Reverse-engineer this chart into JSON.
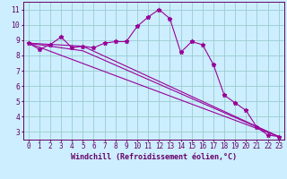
{
  "xlabel": "Windchill (Refroidissement éolien,°C)",
  "bg_color": "#cceeff",
  "line_color": "#990099",
  "grid_color": "#99cccc",
  "xlim": [
    -0.5,
    23.5
  ],
  "ylim": [
    2.5,
    11.5
  ],
  "xticks": [
    0,
    1,
    2,
    3,
    4,
    5,
    6,
    7,
    8,
    9,
    10,
    11,
    12,
    13,
    14,
    15,
    16,
    17,
    18,
    19,
    20,
    21,
    22,
    23
  ],
  "yticks": [
    3,
    4,
    5,
    6,
    7,
    8,
    9,
    10,
    11
  ],
  "series1_x": [
    0,
    1,
    2,
    3,
    4,
    5,
    6,
    7,
    8,
    9,
    10,
    11,
    12,
    13,
    14,
    15,
    16,
    17,
    18,
    19,
    20,
    21,
    22,
    23
  ],
  "series1_y": [
    8.8,
    8.4,
    8.7,
    9.2,
    8.5,
    8.6,
    8.5,
    8.8,
    8.9,
    8.9,
    9.9,
    10.5,
    11.0,
    10.4,
    8.2,
    8.9,
    8.7,
    7.4,
    5.4,
    4.9,
    4.4,
    3.3,
    2.8,
    2.7
  ],
  "series2_x": [
    0,
    23
  ],
  "series2_y": [
    8.8,
    2.7
  ],
  "series3_x": [
    0,
    5,
    23
  ],
  "series3_y": [
    8.8,
    8.6,
    2.7
  ],
  "series4_x": [
    0,
    5,
    23
  ],
  "series4_y": [
    8.8,
    8.3,
    2.7
  ],
  "tick_color": "#660066",
  "tick_fontsize": 5.5,
  "xlabel_fontsize": 6.0
}
